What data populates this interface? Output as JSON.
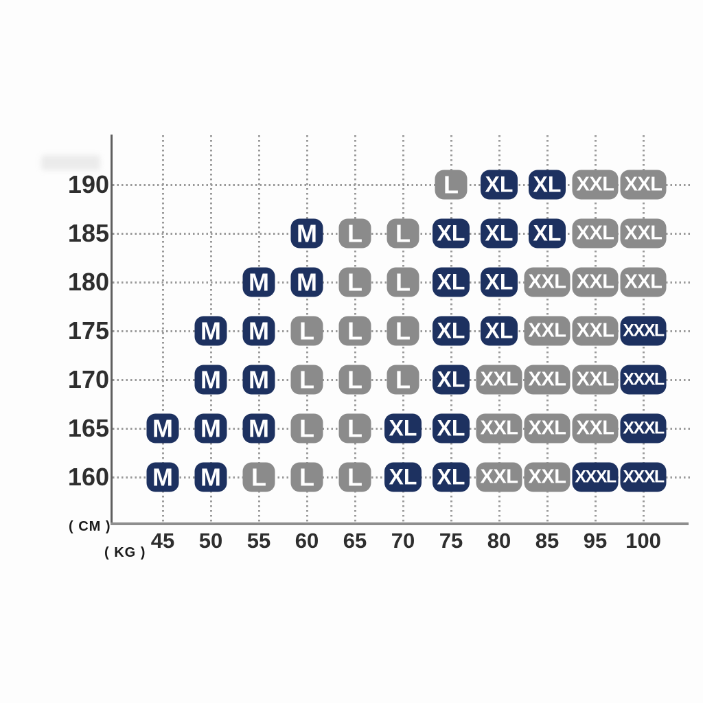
{
  "palette": {
    "navy": "#1d3160",
    "gray": "#8b8b8b",
    "badge_text": "#ffffff",
    "axis_line": "#6e6e6e",
    "grid_dot": "#9a9a9a",
    "tick_text": "#2e2e2e"
  },
  "axes": {
    "y_unit_label": "( CM )",
    "x_unit_label": "( KG )"
  },
  "chart_data": {
    "type": "heatmap",
    "title": "",
    "xlabel": "( KG )",
    "ylabel": "( CM )",
    "grid": "dotted",
    "legend": "none",
    "x_tick_labels": [
      "45",
      "50",
      "55",
      "60",
      "65",
      "70",
      "75",
      "80",
      "85",
      "95",
      "100"
    ],
    "y_tick_labels": [
      "190",
      "185",
      "180",
      "175",
      "170",
      "165",
      "160"
    ],
    "rows": [
      {
        "height": "190",
        "cells": [
          {
            "weight": "75",
            "size": "L",
            "color": "gray"
          },
          {
            "weight": "80",
            "size": "XL",
            "color": "navy"
          },
          {
            "weight": "85",
            "size": "XL",
            "color": "navy"
          },
          {
            "weight": "95",
            "size": "XXL",
            "color": "gray"
          },
          {
            "weight": "100",
            "size": "XXL",
            "color": "gray"
          }
        ]
      },
      {
        "height": "185",
        "cells": [
          {
            "weight": "60",
            "size": "M",
            "color": "navy"
          },
          {
            "weight": "65",
            "size": "L",
            "color": "gray"
          },
          {
            "weight": "70",
            "size": "L",
            "color": "gray"
          },
          {
            "weight": "75",
            "size": "XL",
            "color": "navy"
          },
          {
            "weight": "80",
            "size": "XL",
            "color": "navy"
          },
          {
            "weight": "85",
            "size": "XL",
            "color": "navy"
          },
          {
            "weight": "95",
            "size": "XXL",
            "color": "gray"
          },
          {
            "weight": "100",
            "size": "XXL",
            "color": "gray"
          }
        ]
      },
      {
        "height": "180",
        "cells": [
          {
            "weight": "55",
            "size": "M",
            "color": "navy"
          },
          {
            "weight": "60",
            "size": "M",
            "color": "navy"
          },
          {
            "weight": "65",
            "size": "L",
            "color": "gray"
          },
          {
            "weight": "70",
            "size": "L",
            "color": "gray"
          },
          {
            "weight": "75",
            "size": "XL",
            "color": "navy"
          },
          {
            "weight": "80",
            "size": "XL",
            "color": "navy"
          },
          {
            "weight": "85",
            "size": "XXL",
            "color": "gray"
          },
          {
            "weight": "95",
            "size": "XXL",
            "color": "gray"
          },
          {
            "weight": "100",
            "size": "XXL",
            "color": "gray"
          }
        ]
      },
      {
        "height": "175",
        "cells": [
          {
            "weight": "50",
            "size": "M",
            "color": "navy"
          },
          {
            "weight": "55",
            "size": "M",
            "color": "navy"
          },
          {
            "weight": "60",
            "size": "L",
            "color": "gray"
          },
          {
            "weight": "65",
            "size": "L",
            "color": "gray"
          },
          {
            "weight": "70",
            "size": "L",
            "color": "gray"
          },
          {
            "weight": "75",
            "size": "XL",
            "color": "navy"
          },
          {
            "weight": "80",
            "size": "XL",
            "color": "navy"
          },
          {
            "weight": "85",
            "size": "XXL",
            "color": "gray"
          },
          {
            "weight": "95",
            "size": "XXL",
            "color": "gray"
          },
          {
            "weight": "100",
            "size": "XXXL",
            "color": "navy"
          }
        ]
      },
      {
        "height": "170",
        "cells": [
          {
            "weight": "50",
            "size": "M",
            "color": "navy"
          },
          {
            "weight": "55",
            "size": "M",
            "color": "navy"
          },
          {
            "weight": "60",
            "size": "L",
            "color": "gray"
          },
          {
            "weight": "65",
            "size": "L",
            "color": "gray"
          },
          {
            "weight": "70",
            "size": "L",
            "color": "gray"
          },
          {
            "weight": "75",
            "size": "XL",
            "color": "navy"
          },
          {
            "weight": "80",
            "size": "XXL",
            "color": "gray"
          },
          {
            "weight": "85",
            "size": "XXL",
            "color": "gray"
          },
          {
            "weight": "95",
            "size": "XXL",
            "color": "gray"
          },
          {
            "weight": "100",
            "size": "XXXL",
            "color": "navy"
          }
        ]
      },
      {
        "height": "165",
        "cells": [
          {
            "weight": "45",
            "size": "M",
            "color": "navy"
          },
          {
            "weight": "50",
            "size": "M",
            "color": "navy"
          },
          {
            "weight": "55",
            "size": "M",
            "color": "navy"
          },
          {
            "weight": "60",
            "size": "L",
            "color": "gray"
          },
          {
            "weight": "65",
            "size": "L",
            "color": "gray"
          },
          {
            "weight": "70",
            "size": "XL",
            "color": "navy"
          },
          {
            "weight": "75",
            "size": "XL",
            "color": "navy"
          },
          {
            "weight": "80",
            "size": "XXL",
            "color": "gray"
          },
          {
            "weight": "85",
            "size": "XXL",
            "color": "gray"
          },
          {
            "weight": "95",
            "size": "XXL",
            "color": "gray"
          },
          {
            "weight": "100",
            "size": "XXXL",
            "color": "navy"
          }
        ]
      },
      {
        "height": "160",
        "cells": [
          {
            "weight": "45",
            "size": "M",
            "color": "navy"
          },
          {
            "weight": "50",
            "size": "M",
            "color": "navy"
          },
          {
            "weight": "55",
            "size": "L",
            "color": "gray"
          },
          {
            "weight": "60",
            "size": "L",
            "color": "gray"
          },
          {
            "weight": "65",
            "size": "L",
            "color": "gray"
          },
          {
            "weight": "70",
            "size": "XL",
            "color": "navy"
          },
          {
            "weight": "75",
            "size": "XL",
            "color": "navy"
          },
          {
            "weight": "80",
            "size": "XXL",
            "color": "gray"
          },
          {
            "weight": "85",
            "size": "XXL",
            "color": "gray"
          },
          {
            "weight": "95",
            "size": "XXXL",
            "color": "navy"
          },
          {
            "weight": "100",
            "size": "XXXL",
            "color": "navy"
          }
        ]
      }
    ]
  }
}
